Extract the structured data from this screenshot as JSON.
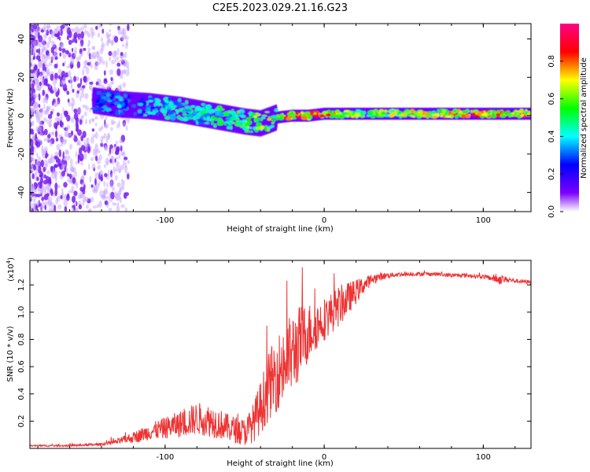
{
  "title": "C2E5.2023.029.21.16.G23",
  "chart_data": [
    {
      "type": "heatmap",
      "name": "spectrogram",
      "xlabel": "Height of straight line (km)",
      "ylabel": "Frequency (Hz)",
      "xlim": [
        -185,
        130
      ],
      "ylim": [
        -50,
        48
      ],
      "xticks": [
        -100,
        0,
        100
      ],
      "yticks": [
        -40,
        -20,
        0,
        20,
        40
      ],
      "colorbar": {
        "label": "Normalized spectral amplitude",
        "range": [
          0.0,
          1.0
        ],
        "ticks": [
          0.0,
          0.2,
          0.4,
          0.6,
          0.8
        ],
        "tick_labels": [
          "0.0",
          "0.2",
          "0.4",
          "0.6",
          "0.8"
        ],
        "colors": [
          "#ffffff",
          "#7a00ff",
          "#0000ff",
          "#00ffff",
          "#00ff00",
          "#ffff00",
          "#ff0000",
          "#ff00aa"
        ]
      },
      "ridge": {
        "x": [
          -145,
          -130,
          -110,
          -90,
          -70,
          -50,
          -40,
          -30,
          -20,
          -10,
          0,
          20,
          50,
          80,
          100,
          130
        ],
        "freq": [
          8,
          6,
          5,
          3,
          0,
          -3,
          -4,
          -1,
          0,
          0,
          1,
          1,
          1,
          1,
          1,
          1
        ],
        "amplitude": [
          0.35,
          0.4,
          0.45,
          0.5,
          0.55,
          0.65,
          0.7,
          0.8,
          0.9,
          0.9,
          0.9,
          0.7,
          0.75,
          0.85,
          0.9,
          0.85
        ]
      }
    },
    {
      "type": "line",
      "name": "snr",
      "xlabel": "Height of straight line (km)",
      "ylabel": "SNR (10 * v/v)",
      "scale_label": "(x10",
      "scale_exp": "4",
      "scale_close": ")",
      "xlim": [
        -185,
        130
      ],
      "ylim": [
        0,
        1.38
      ],
      "xticks": [
        -100,
        0,
        100
      ],
      "yticks": [
        0.2,
        0.4,
        0.6,
        0.8,
        1.0,
        1.2
      ],
      "ytick_labels": [
        "0.2",
        "0.4",
        "0.6",
        "0.8",
        "1.0",
        "1.2"
      ],
      "color": "#ee3333",
      "x": [
        -185,
        -160,
        -140,
        -130,
        -120,
        -110,
        -100,
        -90,
        -80,
        -70,
        -60,
        -50,
        -45,
        -40,
        -35,
        -30,
        -25,
        -20,
        -15,
        -10,
        -5,
        0,
        5,
        10,
        15,
        20,
        25,
        30,
        35,
        40,
        50,
        60,
        70,
        80,
        90,
        100,
        105,
        110,
        115,
        120,
        130
      ],
      "y": [
        0.02,
        0.02,
        0.03,
        0.05,
        0.08,
        0.12,
        0.15,
        0.18,
        0.22,
        0.2,
        0.15,
        0.12,
        0.18,
        0.3,
        0.45,
        0.55,
        0.62,
        0.7,
        0.78,
        0.85,
        0.9,
        0.95,
        1.0,
        1.05,
        1.1,
        1.15,
        1.2,
        1.24,
        1.26,
        1.27,
        1.28,
        1.28,
        1.28,
        1.27,
        1.27,
        1.26,
        1.25,
        1.24,
        1.24,
        1.23,
        1.22
      ],
      "noise": [
        0.005,
        0.008,
        0.01,
        0.02,
        0.04,
        0.06,
        0.08,
        0.1,
        0.12,
        0.12,
        0.1,
        0.1,
        0.14,
        0.2,
        0.25,
        0.28,
        0.3,
        0.3,
        0.28,
        0.22,
        0.18,
        0.16,
        0.15,
        0.15,
        0.12,
        0.09,
        0.06,
        0.04,
        0.03,
        0.02,
        0.015,
        0.015,
        0.015,
        0.015,
        0.015,
        0.015,
        0.02,
        0.04,
        0.02,
        0.015,
        0.015
      ]
    }
  ]
}
